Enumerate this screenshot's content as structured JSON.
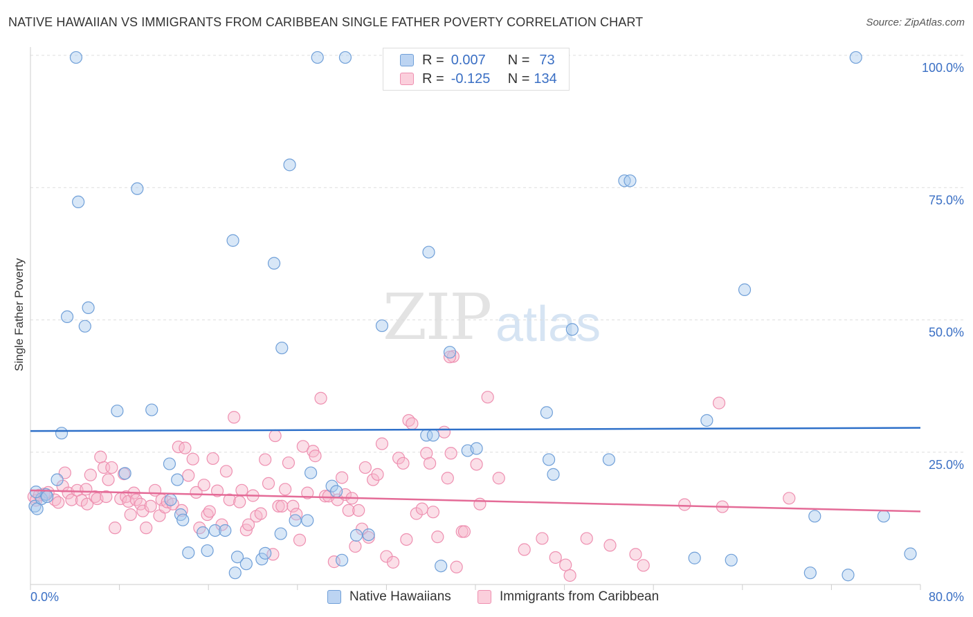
{
  "title": "NATIVE HAWAIIAN VS IMMIGRANTS FROM CARIBBEAN SINGLE FATHER POVERTY CORRELATION CHART",
  "source": "Source: ZipAtlas.com",
  "watermark": {
    "zip": "ZIP",
    "atlas": "atlas"
  },
  "legend": {
    "rows": [
      {
        "r_label": "R =",
        "r_value": "0.007",
        "n_label": "N =",
        "n_value": "73"
      },
      {
        "r_label": "R =",
        "r_value": "-0.125",
        "n_label": "N =",
        "n_value": "134"
      }
    ]
  },
  "bottom_legend": [
    "Native Hawaiians",
    "Immigrants from Caribbean"
  ],
  "colors": {
    "blue_fill": "#a9c9ee",
    "blue_stroke": "#6f9fd8",
    "blue_line": "#2e70c9",
    "pink_fill": "#f7b9cc",
    "pink_stroke": "#ee8fb0",
    "pink_line": "#e46b97",
    "tick_text": "#3a6fc4",
    "grid": "#dddddd"
  },
  "chart_data": {
    "type": "scatter",
    "title": "NATIVE HAWAIIAN VS IMMIGRANTS FROM CARIBBEAN SINGLE FATHER POVERTY CORRELATION CHART",
    "xlabel": "",
    "ylabel": "Single Father Poverty",
    "xlim": [
      0,
      80
    ],
    "ylim": [
      0,
      100
    ],
    "x_tick_labels": [
      "0.0%",
      "80.0%"
    ],
    "y_tick_labels": [
      "25.0%",
      "50.0%",
      "75.0%",
      "100.0%"
    ],
    "y_ticks": [
      25,
      50,
      75,
      100
    ],
    "grid": true,
    "legend_position": "top-center",
    "series": [
      {
        "name": "Native Hawaiians",
        "R": 0.007,
        "N": 73,
        "trend": {
          "x": [
            0,
            80
          ],
          "y": [
            29.0,
            29.6
          ]
        },
        "points": [
          [
            0.4,
            14.8
          ],
          [
            0.6,
            14.3
          ],
          [
            1.0,
            16.2
          ],
          [
            1.4,
            17.0
          ],
          [
            1.5,
            16.6
          ],
          [
            2.4,
            19.8
          ],
          [
            2.8,
            28.6
          ],
          [
            3.3,
            50.6
          ],
          [
            4.1,
            99.6
          ],
          [
            4.3,
            72.3
          ],
          [
            4.9,
            48.8
          ],
          [
            5.2,
            52.3
          ],
          [
            7.8,
            32.8
          ],
          [
            8.5,
            21.0
          ],
          [
            9.6,
            74.8
          ],
          [
            10.9,
            33.0
          ],
          [
            12.5,
            22.8
          ],
          [
            12.6,
            16.0
          ],
          [
            13.2,
            19.8
          ],
          [
            13.5,
            13.2
          ],
          [
            13.7,
            12.2
          ],
          [
            14.2,
            6.0
          ],
          [
            15.5,
            9.8
          ],
          [
            15.9,
            6.4
          ],
          [
            16.6,
            10.2
          ],
          [
            17.5,
            10.2
          ],
          [
            18.2,
            65.0
          ],
          [
            18.4,
            2.2
          ],
          [
            18.6,
            5.2
          ],
          [
            19.4,
            3.9
          ],
          [
            20.8,
            4.8
          ],
          [
            21.1,
            5.9
          ],
          [
            21.9,
            60.7
          ],
          [
            22.5,
            9.6
          ],
          [
            22.6,
            44.7
          ],
          [
            23.3,
            79.3
          ],
          [
            23.8,
            12.1
          ],
          [
            24.9,
            12.1
          ],
          [
            25.2,
            21.1
          ],
          [
            25.8,
            99.6
          ],
          [
            27.1,
            18.6
          ],
          [
            27.5,
            17.6
          ],
          [
            28.0,
            4.6
          ],
          [
            28.3,
            99.6
          ],
          [
            29.3,
            9.3
          ],
          [
            30.4,
            9.4
          ],
          [
            31.6,
            48.9
          ],
          [
            35.6,
            28.2
          ],
          [
            36.2,
            28.2
          ],
          [
            35.8,
            62.8
          ],
          [
            36.9,
            3.5
          ],
          [
            37.7,
            43.9
          ],
          [
            39.3,
            25.3
          ],
          [
            39.6,
            99.7
          ],
          [
            40.1,
            25.7
          ],
          [
            47.0,
            20.8
          ],
          [
            46.6,
            23.6
          ],
          [
            46.4,
            32.5
          ],
          [
            48.7,
            48.2
          ],
          [
            52.0,
            23.6
          ],
          [
            53.4,
            76.3
          ],
          [
            53.9,
            76.3
          ],
          [
            59.7,
            5.0
          ],
          [
            60.8,
            31.0
          ],
          [
            63.0,
            4.6
          ],
          [
            64.2,
            55.7
          ],
          [
            70.1,
            2.2
          ],
          [
            70.5,
            12.9
          ],
          [
            73.5,
            1.8
          ],
          [
            74.2,
            99.6
          ],
          [
            76.7,
            12.9
          ],
          [
            79.1,
            5.8
          ],
          [
            0.5,
            17.5
          ]
        ]
      },
      {
        "name": "Immigrants from Caribbean",
        "R": -0.125,
        "N": 134,
        "trend": {
          "x": [
            0,
            80
          ],
          "y": [
            17.8,
            13.8
          ]
        },
        "points": [
          [
            0.3,
            16.6
          ],
          [
            0.5,
            15.9
          ],
          [
            0.8,
            16.9
          ],
          [
            1.2,
            17.1
          ],
          [
            1.6,
            17.4
          ],
          [
            2.2,
            16.0
          ],
          [
            2.5,
            15.5
          ],
          [
            2.9,
            18.6
          ],
          [
            3.1,
            21.1
          ],
          [
            3.4,
            17.3
          ],
          [
            3.7,
            16.0
          ],
          [
            4.2,
            17.8
          ],
          [
            4.6,
            15.9
          ],
          [
            5.0,
            18.0
          ],
          [
            5.1,
            15.2
          ],
          [
            5.4,
            20.7
          ],
          [
            5.8,
            16.6
          ],
          [
            6.0,
            16.2
          ],
          [
            6.3,
            24.1
          ],
          [
            6.6,
            22.1
          ],
          [
            6.8,
            16.6
          ],
          [
            7.0,
            19.8
          ],
          [
            7.3,
            22.1
          ],
          [
            7.6,
            10.7
          ],
          [
            8.1,
            16.2
          ],
          [
            8.4,
            20.9
          ],
          [
            8.6,
            16.6
          ],
          [
            8.8,
            15.7
          ],
          [
            9.0,
            13.2
          ],
          [
            9.3,
            17.3
          ],
          [
            9.5,
            16.0
          ],
          [
            9.9,
            15.2
          ],
          [
            10.1,
            13.9
          ],
          [
            10.4,
            10.7
          ],
          [
            10.8,
            14.8
          ],
          [
            11.2,
            17.8
          ],
          [
            11.6,
            13.0
          ],
          [
            11.8,
            16.0
          ],
          [
            12.1,
            14.6
          ],
          [
            12.3,
            15.6
          ],
          [
            12.8,
            15.2
          ],
          [
            13.3,
            26.0
          ],
          [
            13.6,
            14.0
          ],
          [
            13.9,
            25.8
          ],
          [
            14.2,
            20.6
          ],
          [
            14.6,
            23.7
          ],
          [
            14.9,
            17.4
          ],
          [
            15.2,
            10.7
          ],
          [
            15.6,
            18.8
          ],
          [
            15.9,
            13.2
          ],
          [
            16.1,
            13.8
          ],
          [
            16.4,
            23.8
          ],
          [
            16.8,
            17.7
          ],
          [
            17.2,
            11.3
          ],
          [
            17.6,
            21.4
          ],
          [
            17.9,
            16.0
          ],
          [
            18.3,
            31.6
          ],
          [
            18.8,
            15.6
          ],
          [
            19.0,
            17.8
          ],
          [
            19.4,
            10.3
          ],
          [
            19.6,
            11.3
          ],
          [
            20.0,
            16.8
          ],
          [
            20.3,
            12.9
          ],
          [
            20.7,
            13.4
          ],
          [
            21.1,
            23.6
          ],
          [
            21.4,
            19.1
          ],
          [
            21.8,
            5.7
          ],
          [
            22.0,
            28.1
          ],
          [
            22.3,
            14.8
          ],
          [
            22.6,
            14.8
          ],
          [
            22.9,
            18.0
          ],
          [
            23.2,
            23.0
          ],
          [
            23.6,
            14.8
          ],
          [
            23.9,
            13.3
          ],
          [
            24.2,
            8.4
          ],
          [
            24.5,
            26.1
          ],
          [
            24.9,
            17.3
          ],
          [
            25.4,
            25.2
          ],
          [
            25.6,
            24.3
          ],
          [
            26.1,
            35.2
          ],
          [
            26.5,
            16.7
          ],
          [
            26.8,
            16.7
          ],
          [
            27.3,
            4.3
          ],
          [
            27.6,
            16.0
          ],
          [
            28.0,
            20.2
          ],
          [
            28.3,
            17.0
          ],
          [
            28.6,
            14.0
          ],
          [
            28.9,
            16.3
          ],
          [
            29.2,
            7.2
          ],
          [
            29.5,
            14.0
          ],
          [
            29.8,
            10.5
          ],
          [
            30.1,
            22.1
          ],
          [
            30.4,
            8.9
          ],
          [
            30.8,
            19.8
          ],
          [
            31.2,
            20.8
          ],
          [
            31.6,
            26.6
          ],
          [
            32.0,
            5.3
          ],
          [
            32.6,
            4.2
          ],
          [
            33.1,
            23.9
          ],
          [
            33.5,
            22.9
          ],
          [
            33.8,
            8.5
          ],
          [
            34.0,
            31.0
          ],
          [
            34.3,
            30.4
          ],
          [
            34.7,
            13.4
          ],
          [
            35.2,
            14.3
          ],
          [
            35.6,
            24.8
          ],
          [
            35.9,
            22.9
          ],
          [
            36.2,
            13.7
          ],
          [
            36.6,
            9.0
          ],
          [
            37.2,
            28.8
          ],
          [
            37.5,
            20.1
          ],
          [
            37.8,
            24.8
          ],
          [
            38.0,
            43.1
          ],
          [
            38.3,
            3.3
          ],
          [
            38.8,
            10.0
          ],
          [
            39.0,
            10.0
          ],
          [
            40.1,
            22.7
          ],
          [
            40.4,
            15.2
          ],
          [
            41.1,
            35.4
          ],
          [
            42.1,
            20.1
          ],
          [
            44.4,
            6.6
          ],
          [
            46.0,
            8.7
          ],
          [
            47.2,
            5.1
          ],
          [
            48.1,
            3.7
          ],
          [
            48.5,
            1.7
          ],
          [
            50.0,
            8.7
          ],
          [
            52.1,
            7.4
          ],
          [
            54.4,
            5.7
          ],
          [
            55.1,
            3.6
          ],
          [
            58.8,
            15.1
          ],
          [
            61.9,
            34.3
          ],
          [
            62.2,
            14.7
          ],
          [
            68.2,
            16.3
          ],
          [
            37.7,
            43.0
          ]
        ]
      }
    ]
  }
}
